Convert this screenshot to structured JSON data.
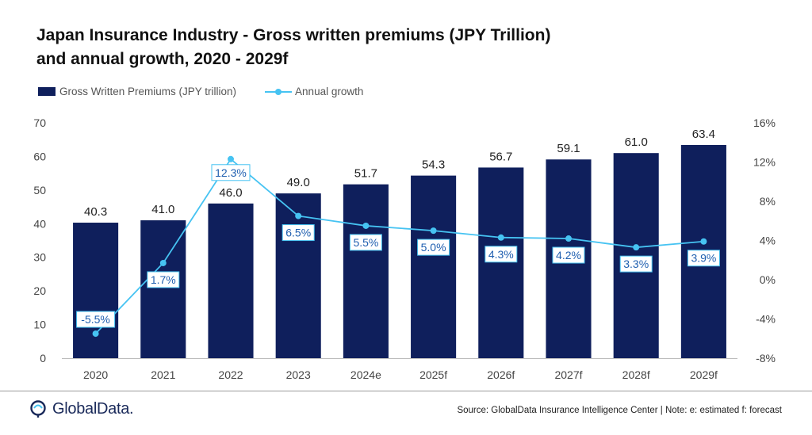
{
  "title_line1": "Japan Insurance Industry - Gross written premiums (JPY Trillion)",
  "title_line2": "and annual growth, 2020 - 2029f",
  "legend": {
    "bar_label": "Gross Written Premiums (JPY trillion)",
    "line_label": "Annual growth"
  },
  "footer": {
    "logo_text": "GlobalData.",
    "source": "Source: GlobalData Insurance Intelligence Center | Note: e: estimated f: forecast"
  },
  "colors": {
    "bar": "#0f1f5c",
    "line": "#46c3f2",
    "label_text": "#1f5fb0"
  },
  "chart_data": {
    "type": "bar",
    "categories": [
      "2020",
      "2021",
      "2022",
      "2023",
      "2024e",
      "2025f",
      "2026f",
      "2027f",
      "2028f",
      "2029f"
    ],
    "series": [
      {
        "name": "Gross Written Premiums (JPY trillion)",
        "type": "bar",
        "axis": "left",
        "values": [
          40.3,
          41.0,
          46.0,
          49.0,
          51.7,
          54.3,
          56.7,
          59.1,
          61.0,
          63.4
        ],
        "labels": [
          "40.3",
          "41.0",
          "46.0",
          "49.0",
          "51.7",
          "54.3",
          "56.7",
          "59.1",
          "61.0",
          "63.4"
        ]
      },
      {
        "name": "Annual growth",
        "type": "line",
        "axis": "right",
        "values": [
          -5.5,
          1.7,
          12.3,
          6.5,
          5.5,
          5.0,
          4.3,
          4.2,
          3.3,
          3.9
        ],
        "labels": [
          "-5.5%",
          "1.7%",
          "12.3%",
          "6.5%",
          "5.5%",
          "5.0%",
          "4.3%",
          "4.2%",
          "3.3%",
          "3.9%"
        ]
      }
    ],
    "y_left": {
      "min": 0,
      "max": 70,
      "ticks": [
        "0",
        "10",
        "20",
        "30",
        "40",
        "50",
        "60",
        "70"
      ]
    },
    "y_right": {
      "min": -8,
      "max": 16,
      "ticks": [
        "-8%",
        "-4%",
        "0%",
        "4%",
        "8%",
        "12%",
        "16%"
      ]
    },
    "grid": false,
    "legend_position": "top-left"
  }
}
